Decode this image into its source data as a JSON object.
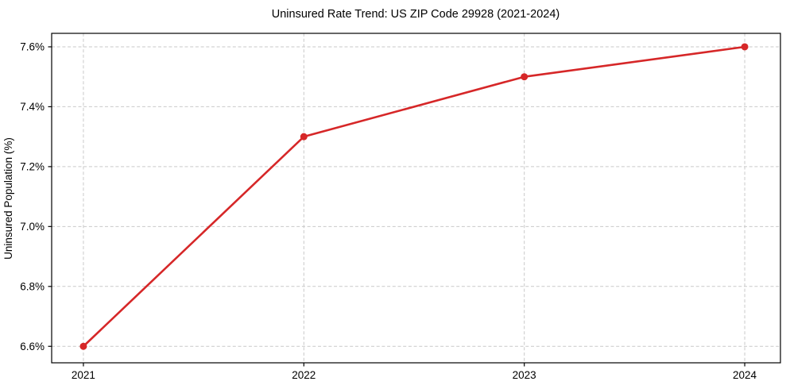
{
  "chart_data": {
    "type": "line",
    "title": "Uninsured Rate Trend: US ZIP Code 29928 (2021-2024)",
    "xlabel": "",
    "ylabel": "Uninsured Population (%)",
    "x": [
      2021,
      2022,
      2023,
      2024
    ],
    "values": [
      6.6,
      7.3,
      7.5,
      7.6
    ],
    "x_tick_labels": [
      "2021",
      "2022",
      "2023",
      "2024"
    ],
    "y_ticks": [
      6.6,
      6.8,
      7.0,
      7.2,
      7.4,
      7.6
    ],
    "y_tick_labels": [
      "6.6%",
      "6.8%",
      "7.0%",
      "7.2%",
      "7.4%",
      "7.6%"
    ],
    "xlim": [
      2020.856,
      2024.162
    ],
    "ylim": [
      6.545,
      7.645
    ],
    "grid": true,
    "grid_style": "dashed",
    "legend_position": "none",
    "line_color": "#d62728",
    "marker": "circle",
    "grid_color": "#c9c9c9",
    "spine_color": "#000000",
    "text_color": "#000000"
  }
}
